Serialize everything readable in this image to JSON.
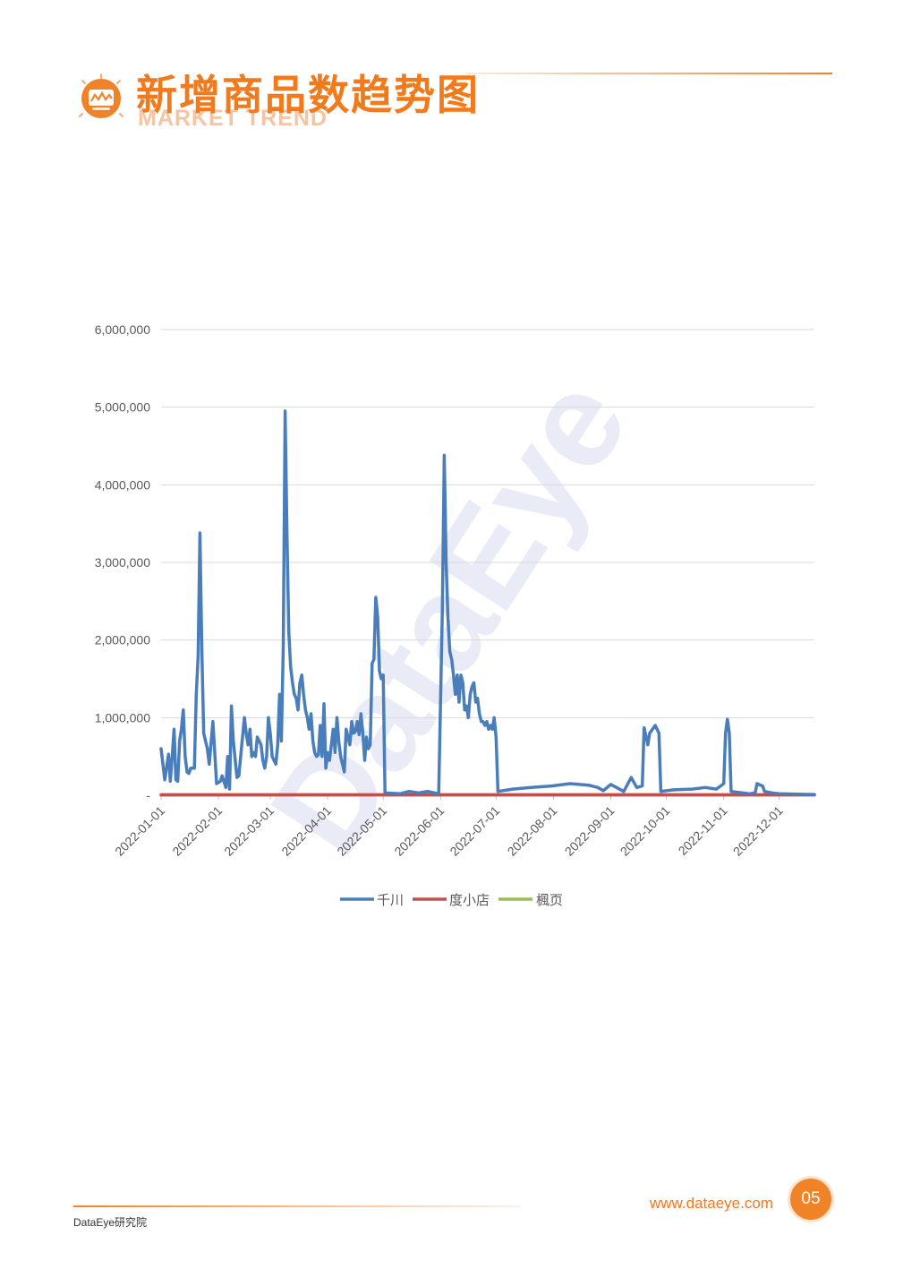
{
  "header": {
    "title": "新增商品数趋势图",
    "subtitle": "MARKET TREND",
    "icon": "trend-chart-icon",
    "accent_color": "#f08228"
  },
  "footer": {
    "org": "DataEye研究院",
    "url": "www.dataeye.com",
    "page_number": "05"
  },
  "watermark": "DataEye",
  "chart_data": {
    "type": "line",
    "ylim": [
      0,
      6000000
    ],
    "yticks": [
      0,
      1000000,
      2000000,
      3000000,
      4000000,
      5000000,
      6000000
    ],
    "ytick_labels": [
      "-",
      "1,000,000",
      "2,000,000",
      "3,000,000",
      "4,000,000",
      "5,000,000",
      "6,000,000"
    ],
    "xlim": [
      "2022-01-01",
      "2022-12-20"
    ],
    "xticks": [
      "2022-01-01",
      "2022-02-01",
      "2022-03-01",
      "2022-04-01",
      "2022-05-01",
      "2022-06-01",
      "2022-07-01",
      "2022-08-01",
      "2022-09-01",
      "2022-10-01",
      "2022-11-01",
      "2022-12-01"
    ],
    "grid": true,
    "legend_position": "bottom",
    "series": [
      {
        "name": "千川",
        "color": "#4a7ebb",
        "points": [
          [
            "2022-01-01",
            600000
          ],
          [
            "2022-01-03",
            200000
          ],
          [
            "2022-01-05",
            530000
          ],
          [
            "2022-01-06",
            180000
          ],
          [
            "2022-01-07",
            500000
          ],
          [
            "2022-01-08",
            850000
          ],
          [
            "2022-01-09",
            200000
          ],
          [
            "2022-01-10",
            180000
          ],
          [
            "2022-01-11",
            700000
          ],
          [
            "2022-01-12",
            850000
          ],
          [
            "2022-01-13",
            1100000
          ],
          [
            "2022-01-14",
            500000
          ],
          [
            "2022-01-15",
            300000
          ],
          [
            "2022-01-16",
            280000
          ],
          [
            "2022-01-17",
            350000
          ],
          [
            "2022-01-19",
            350000
          ],
          [
            "2022-01-20",
            1300000
          ],
          [
            "2022-01-21",
            1800000
          ],
          [
            "2022-01-22",
            3380000
          ],
          [
            "2022-01-23",
            1900000
          ],
          [
            "2022-01-24",
            800000
          ],
          [
            "2022-01-26",
            600000
          ],
          [
            "2022-01-27",
            400000
          ],
          [
            "2022-01-29",
            950000
          ],
          [
            "2022-01-31",
            150000
          ],
          [
            "2022-02-02",
            180000
          ],
          [
            "2022-02-03",
            250000
          ],
          [
            "2022-02-05",
            100000
          ],
          [
            "2022-02-06",
            500000
          ],
          [
            "2022-02-07",
            80000
          ],
          [
            "2022-02-08",
            1150000
          ],
          [
            "2022-02-09",
            700000
          ],
          [
            "2022-02-11",
            230000
          ],
          [
            "2022-02-12",
            250000
          ],
          [
            "2022-02-13",
            500000
          ],
          [
            "2022-02-15",
            1000000
          ],
          [
            "2022-02-16",
            800000
          ],
          [
            "2022-02-17",
            650000
          ],
          [
            "2022-02-18",
            850000
          ],
          [
            "2022-02-19",
            500000
          ],
          [
            "2022-02-20",
            550000
          ],
          [
            "2022-02-21",
            500000
          ],
          [
            "2022-02-22",
            750000
          ],
          [
            "2022-02-24",
            650000
          ],
          [
            "2022-02-25",
            450000
          ],
          [
            "2022-02-26",
            350000
          ],
          [
            "2022-02-27",
            500000
          ],
          [
            "2022-02-28",
            1000000
          ],
          [
            "2022-03-01",
            800000
          ],
          [
            "2022-03-02",
            500000
          ],
          [
            "2022-03-04",
            400000
          ],
          [
            "2022-03-05",
            650000
          ],
          [
            "2022-03-06",
            1300000
          ],
          [
            "2022-03-07",
            700000
          ],
          [
            "2022-03-08",
            1900000
          ],
          [
            "2022-03-09",
            4950000
          ],
          [
            "2022-03-10",
            3400000
          ],
          [
            "2022-03-11",
            2100000
          ],
          [
            "2022-03-12",
            1650000
          ],
          [
            "2022-03-13",
            1450000
          ],
          [
            "2022-03-14",
            1300000
          ],
          [
            "2022-03-15",
            1250000
          ],
          [
            "2022-03-16",
            1100000
          ],
          [
            "2022-03-17",
            1450000
          ],
          [
            "2022-03-18",
            1550000
          ],
          [
            "2022-03-19",
            1300000
          ],
          [
            "2022-03-20",
            1100000
          ],
          [
            "2022-03-21",
            1000000
          ],
          [
            "2022-03-22",
            850000
          ],
          [
            "2022-03-23",
            1050000
          ],
          [
            "2022-03-24",
            700000
          ],
          [
            "2022-03-25",
            550000
          ],
          [
            "2022-03-26",
            500000
          ],
          [
            "2022-03-27",
            520000
          ],
          [
            "2022-03-28",
            900000
          ],
          [
            "2022-03-29",
            500000
          ],
          [
            "2022-03-30",
            1180000
          ],
          [
            "2022-03-31",
            350000
          ],
          [
            "2022-04-01",
            550000
          ],
          [
            "2022-04-02",
            450000
          ],
          [
            "2022-04-04",
            850000
          ],
          [
            "2022-04-05",
            550000
          ],
          [
            "2022-04-06",
            1000000
          ],
          [
            "2022-04-07",
            700000
          ],
          [
            "2022-04-08",
            500000
          ],
          [
            "2022-04-09",
            400000
          ],
          [
            "2022-04-10",
            300000
          ],
          [
            "2022-04-11",
            850000
          ],
          [
            "2022-04-12",
            750000
          ],
          [
            "2022-04-13",
            650000
          ],
          [
            "2022-04-14",
            950000
          ],
          [
            "2022-04-15",
            800000
          ],
          [
            "2022-04-16",
            820000
          ],
          [
            "2022-04-17",
            950000
          ],
          [
            "2022-04-18",
            780000
          ],
          [
            "2022-04-19",
            1050000
          ],
          [
            "2022-04-20",
            800000
          ],
          [
            "2022-04-21",
            450000
          ],
          [
            "2022-04-22",
            750000
          ],
          [
            "2022-04-23",
            600000
          ],
          [
            "2022-04-24",
            650000
          ],
          [
            "2022-04-25",
            1700000
          ],
          [
            "2022-04-26",
            1750000
          ],
          [
            "2022-04-27",
            2550000
          ],
          [
            "2022-04-28",
            2300000
          ],
          [
            "2022-04-29",
            1600000
          ],
          [
            "2022-04-30",
            1500000
          ],
          [
            "2022-05-01",
            1550000
          ],
          [
            "2022-05-02",
            30000
          ],
          [
            "2022-05-10",
            20000
          ],
          [
            "2022-05-15",
            50000
          ],
          [
            "2022-05-20",
            30000
          ],
          [
            "2022-05-25",
            50000
          ],
          [
            "2022-05-31",
            20000
          ],
          [
            "2022-06-02",
            2400000
          ],
          [
            "2022-06-03",
            4380000
          ],
          [
            "2022-06-04",
            3000000
          ],
          [
            "2022-06-05",
            2300000
          ],
          [
            "2022-06-06",
            1850000
          ],
          [
            "2022-06-07",
            1750000
          ],
          [
            "2022-06-08",
            1550000
          ],
          [
            "2022-06-09",
            1300000
          ],
          [
            "2022-06-10",
            1550000
          ],
          [
            "2022-06-11",
            1200000
          ],
          [
            "2022-06-12",
            1550000
          ],
          [
            "2022-06-13",
            1450000
          ],
          [
            "2022-06-14",
            1100000
          ],
          [
            "2022-06-15",
            1150000
          ],
          [
            "2022-06-16",
            1000000
          ],
          [
            "2022-06-17",
            1300000
          ],
          [
            "2022-06-18",
            1400000
          ],
          [
            "2022-06-19",
            1450000
          ],
          [
            "2022-06-20",
            1200000
          ],
          [
            "2022-06-21",
            1250000
          ],
          [
            "2022-06-22",
            1050000
          ],
          [
            "2022-06-23",
            950000
          ],
          [
            "2022-06-24",
            950000
          ],
          [
            "2022-06-25",
            900000
          ],
          [
            "2022-06-26",
            950000
          ],
          [
            "2022-06-27",
            850000
          ],
          [
            "2022-06-28",
            900000
          ],
          [
            "2022-06-29",
            850000
          ],
          [
            "2022-06-30",
            1000000
          ],
          [
            "2022-07-01",
            750000
          ],
          [
            "2022-07-02",
            50000
          ],
          [
            "2022-07-10",
            80000
          ],
          [
            "2022-07-20",
            100000
          ],
          [
            "2022-07-31",
            120000
          ],
          [
            "2022-08-10",
            150000
          ],
          [
            "2022-08-20",
            130000
          ],
          [
            "2022-08-25",
            100000
          ],
          [
            "2022-08-28",
            60000
          ],
          [
            "2022-09-01",
            140000
          ],
          [
            "2022-09-08",
            50000
          ],
          [
            "2022-09-12",
            230000
          ],
          [
            "2022-09-15",
            100000
          ],
          [
            "2022-09-18",
            120000
          ],
          [
            "2022-09-19",
            870000
          ],
          [
            "2022-09-21",
            650000
          ],
          [
            "2022-09-22",
            800000
          ],
          [
            "2022-09-25",
            900000
          ],
          [
            "2022-09-27",
            800000
          ],
          [
            "2022-09-28",
            50000
          ],
          [
            "2022-10-05",
            70000
          ],
          [
            "2022-10-15",
            80000
          ],
          [
            "2022-10-22",
            100000
          ],
          [
            "2022-10-28",
            80000
          ],
          [
            "2022-11-01",
            150000
          ],
          [
            "2022-11-02",
            800000
          ],
          [
            "2022-11-03",
            980000
          ],
          [
            "2022-11-04",
            800000
          ],
          [
            "2022-11-05",
            50000
          ],
          [
            "2022-11-15",
            20000
          ],
          [
            "2022-11-18",
            30000
          ],
          [
            "2022-11-19",
            150000
          ],
          [
            "2022-11-22",
            120000
          ],
          [
            "2022-11-23",
            50000
          ],
          [
            "2022-11-27",
            30000
          ],
          [
            "2022-12-01",
            20000
          ],
          [
            "2022-12-10",
            15000
          ],
          [
            "2022-12-20",
            10000
          ]
        ]
      },
      {
        "name": "度小店",
        "color": "#c0504d",
        "points": [
          [
            "2022-01-01",
            5000
          ],
          [
            "2022-12-20",
            5000
          ]
        ]
      },
      {
        "name": "楓页",
        "color": "#9bbb59",
        "points": [
          [
            "2022-01-01",
            8000
          ],
          [
            "2022-12-20",
            8000
          ]
        ]
      }
    ]
  }
}
